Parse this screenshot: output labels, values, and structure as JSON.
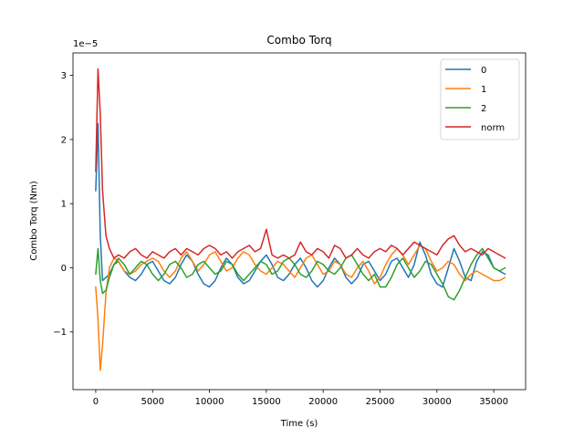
{
  "chart_data": {
    "type": "line",
    "title": "Combo Torq",
    "xlabel": "Time (s)",
    "ylabel": "Combo Torq (Nm)",
    "offset_text": "1e−5",
    "xlim": [
      -2000,
      37800
    ],
    "ylim": [
      -1.9,
      3.35
    ],
    "xticks": [
      0,
      5000,
      10000,
      15000,
      20000,
      25000,
      30000,
      35000
    ],
    "xtick_labels": [
      "0",
      "5000",
      "10000",
      "15000",
      "20000",
      "25000",
      "30000",
      "35000"
    ],
    "yticks": [
      -1,
      0,
      1,
      2,
      3
    ],
    "ytick_labels": [
      "−1",
      "0",
      "1",
      "2",
      "3"
    ],
    "legend_position": "top-right",
    "x": [
      0,
      200,
      400,
      600,
      900,
      1200,
      1600,
      2000,
      2500,
      3000,
      3500,
      4000,
      4500,
      5000,
      5500,
      6000,
      6500,
      7000,
      7500,
      8000,
      8500,
      9000,
      9500,
      10000,
      10500,
      11000,
      11500,
      12000,
      12500,
      13000,
      13500,
      14000,
      14500,
      15000,
      15500,
      16000,
      16500,
      17000,
      17500,
      18000,
      18500,
      19000,
      19500,
      20000,
      20500,
      21000,
      21500,
      22000,
      22500,
      23000,
      23500,
      24000,
      24500,
      25000,
      25500,
      26000,
      26500,
      27000,
      27500,
      28000,
      28500,
      29000,
      29500,
      30000,
      30500,
      31000,
      31500,
      32000,
      32500,
      33000,
      33500,
      34000,
      34500,
      35000,
      35500,
      36000
    ],
    "series": [
      {
        "name": "0",
        "color": "#1f77b4",
        "values": [
          1.2,
          2.25,
          0.5,
          -0.2,
          -0.15,
          -0.1,
          0.05,
          0.1,
          -0.05,
          -0.15,
          -0.2,
          -0.1,
          0.05,
          0.1,
          -0.05,
          -0.2,
          -0.25,
          -0.15,
          0.05,
          0.2,
          0.1,
          -0.1,
          -0.25,
          -0.3,
          -0.2,
          0.0,
          0.15,
          0.05,
          -0.15,
          -0.25,
          -0.2,
          -0.05,
          0.1,
          0.2,
          0.05,
          -0.15,
          -0.2,
          -0.1,
          0.05,
          0.15,
          0.0,
          -0.2,
          -0.3,
          -0.2,
          0.0,
          0.15,
          0.05,
          -0.15,
          -0.25,
          -0.15,
          0.05,
          0.1,
          -0.05,
          -0.2,
          -0.1,
          0.1,
          0.15,
          0.0,
          -0.15,
          0.05,
          0.4,
          0.2,
          -0.1,
          -0.25,
          -0.3,
          0.0,
          0.3,
          0.1,
          -0.15,
          -0.2,
          0.1,
          0.25,
          0.2,
          0.0,
          -0.05,
          -0.1
        ]
      },
      {
        "name": "1",
        "color": "#ff7f0e",
        "values": [
          -0.3,
          -0.8,
          -1.6,
          -1.2,
          -0.4,
          0.0,
          0.15,
          0.1,
          -0.05,
          -0.1,
          -0.05,
          0.05,
          0.1,
          0.15,
          0.1,
          -0.05,
          -0.15,
          -0.05,
          0.15,
          0.25,
          0.1,
          -0.05,
          0.05,
          0.2,
          0.25,
          0.1,
          -0.05,
          0.0,
          0.15,
          0.25,
          0.2,
          0.05,
          -0.05,
          -0.1,
          0.0,
          0.1,
          0.05,
          -0.05,
          -0.15,
          0.0,
          0.15,
          0.2,
          0.05,
          -0.1,
          -0.05,
          0.1,
          0.05,
          -0.1,
          -0.15,
          0.0,
          0.1,
          -0.05,
          -0.25,
          -0.15,
          0.05,
          0.2,
          0.3,
          0.2,
          0.05,
          0.2,
          0.35,
          0.3,
          0.1,
          -0.05,
          0.0,
          0.1,
          0.05,
          -0.1,
          -0.2,
          -0.1,
          -0.05,
          -0.1,
          -0.15,
          -0.2,
          -0.2,
          -0.15
        ]
      },
      {
        "name": "2",
        "color": "#2ca02c",
        "values": [
          -0.1,
          0.3,
          -0.2,
          -0.4,
          -0.35,
          -0.15,
          0.05,
          0.15,
          0.05,
          -0.1,
          0.0,
          0.1,
          0.05,
          -0.1,
          -0.2,
          -0.1,
          0.05,
          0.1,
          0.0,
          -0.15,
          -0.1,
          0.05,
          0.1,
          0.0,
          -0.1,
          -0.05,
          0.1,
          0.05,
          -0.1,
          -0.2,
          -0.1,
          0.0,
          0.1,
          0.05,
          -0.1,
          -0.05,
          0.1,
          0.15,
          0.05,
          -0.1,
          -0.15,
          -0.05,
          0.1,
          0.05,
          -0.05,
          -0.1,
          0.0,
          0.15,
          0.2,
          0.05,
          -0.1,
          -0.2,
          -0.1,
          -0.3,
          -0.3,
          -0.15,
          0.05,
          0.15,
          0.0,
          -0.15,
          -0.05,
          0.1,
          0.05,
          -0.1,
          -0.25,
          -0.45,
          -0.5,
          -0.35,
          -0.15,
          0.05,
          0.2,
          0.3,
          0.15,
          0.0,
          -0.05,
          0.0
        ]
      },
      {
        "name": "norm",
        "color": "#d62728",
        "values": [
          1.5,
          3.1,
          2.4,
          1.2,
          0.5,
          0.3,
          0.15,
          0.2,
          0.15,
          0.25,
          0.3,
          0.2,
          0.15,
          0.25,
          0.2,
          0.15,
          0.25,
          0.3,
          0.2,
          0.3,
          0.25,
          0.2,
          0.3,
          0.35,
          0.3,
          0.2,
          0.25,
          0.15,
          0.25,
          0.3,
          0.35,
          0.25,
          0.3,
          0.6,
          0.2,
          0.15,
          0.2,
          0.15,
          0.2,
          0.4,
          0.25,
          0.2,
          0.3,
          0.25,
          0.15,
          0.35,
          0.3,
          0.15,
          0.2,
          0.3,
          0.2,
          0.15,
          0.25,
          0.3,
          0.25,
          0.35,
          0.3,
          0.2,
          0.3,
          0.4,
          0.35,
          0.3,
          0.25,
          0.2,
          0.35,
          0.45,
          0.5,
          0.35,
          0.25,
          0.3,
          0.25,
          0.2,
          0.3,
          0.25,
          0.2,
          0.15
        ]
      }
    ]
  }
}
